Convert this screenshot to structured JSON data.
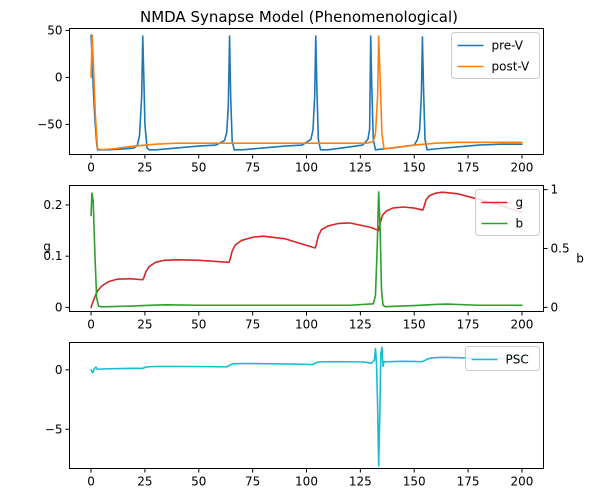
{
  "title": "NMDA Synapse Model (Phenomenological)",
  "chart_data": [
    {
      "type": "line",
      "title": "NMDA Synapse Model (Phenomenological)",
      "xlabel": "",
      "ylabel": "",
      "xlim": [
        -10,
        210
      ],
      "ylim": [
        -82,
        52
      ],
      "xticks": [
        0,
        25,
        50,
        75,
        100,
        125,
        150,
        175,
        200
      ],
      "yticks": [
        50,
        0,
        -50
      ],
      "grid": false,
      "legend_position": "top-right",
      "series": [
        {
          "name": "pre-V",
          "color": "#1f77b4",
          "x": [
            0,
            0.5,
            1,
            1.8,
            2.6,
            3,
            8,
            12,
            16,
            20,
            21.5,
            22.5,
            23.5,
            24,
            24.5,
            25,
            26,
            27,
            30,
            40,
            50,
            58,
            62,
            63,
            63.7,
            64.3,
            64.8,
            65.5,
            66.5,
            70,
            80,
            90,
            98,
            102,
            103,
            103.8,
            104.3,
            104.8,
            105.5,
            106.5,
            110,
            120,
            126,
            128.5,
            129.3,
            129.8,
            130.3,
            131,
            132,
            140,
            150,
            151.5,
            152.5,
            153.3,
            153.8,
            154.3,
            155,
            156,
            160,
            170,
            180,
            190,
            200
          ],
          "y": [
            45,
            20,
            -10,
            -45,
            -70,
            -77,
            -77,
            -76.5,
            -76,
            -75,
            -72,
            -62,
            -20,
            44,
            0,
            -50,
            -75,
            -77,
            -77,
            -75,
            -73,
            -72,
            -67,
            -58,
            -30,
            44,
            -20,
            -68,
            -77,
            -77,
            -75,
            -73,
            -72,
            -66,
            -56,
            -20,
            44,
            -10,
            -66,
            -77,
            -77,
            -74,
            -72,
            -66,
            -55,
            44,
            -10,
            -66,
            -77,
            -75,
            -72,
            -66,
            -56,
            -20,
            43,
            -10,
            -66,
            -77,
            -76,
            -74,
            -72,
            -71,
            -71
          ]
        },
        {
          "name": "post-V",
          "color": "#ff7f0e",
          "x": [
            0,
            0.5,
            1,
            2,
            3,
            5,
            10,
            20,
            30,
            40,
            50,
            60,
            70,
            80,
            90,
            100,
            110,
            120,
            128,
            131,
            132,
            133,
            133.5,
            134,
            135,
            136,
            140,
            150,
            160,
            170,
            180,
            190,
            200
          ],
          "y": [
            0,
            45,
            20,
            -40,
            -76,
            -77,
            -76,
            -73,
            -71,
            -70,
            -70,
            -70,
            -70,
            -70,
            -70,
            -70,
            -70,
            -70,
            -70,
            -68,
            -60,
            -20,
            44,
            10,
            -60,
            -76,
            -75,
            -72,
            -70,
            -69,
            -69,
            -69,
            -69
          ]
        }
      ]
    },
    {
      "type": "line",
      "title": "",
      "xlabel": "",
      "ylabel": "g",
      "y2label": "b",
      "xlim": [
        -10,
        210
      ],
      "ylim": [
        -0.008,
        0.238
      ],
      "y2lim": [
        -0.035,
        1.035
      ],
      "xticks": [
        0,
        25,
        50,
        75,
        100,
        125,
        150,
        175,
        200
      ],
      "yticks": [
        0.0,
        0.1,
        0.2
      ],
      "y2ticks": [
        0.0,
        0.5,
        1.0
      ],
      "grid": false,
      "legend_position": "top-right",
      "series": [
        {
          "name": "g",
          "axis": "left",
          "color": "#d62728",
          "x": [
            0,
            1,
            2,
            3,
            5,
            8,
            12,
            18,
            24,
            24.5,
            25.5,
            27,
            30,
            34,
            40,
            50,
            64,
            64.5,
            65.5,
            67,
            70,
            75,
            80,
            90,
            104,
            104.5,
            105.5,
            107,
            110,
            115,
            120,
            130,
            133.5,
            134.2,
            135.3,
            137,
            140,
            145,
            150,
            154,
            154.5,
            155.5,
            157,
            160,
            163,
            170,
            180,
            190,
            200
          ],
          "y": [
            0,
            0.012,
            0.023,
            0.032,
            0.042,
            0.05,
            0.055,
            0.056,
            0.054,
            0.058,
            0.07,
            0.08,
            0.088,
            0.092,
            0.093,
            0.092,
            0.088,
            0.093,
            0.11,
            0.122,
            0.131,
            0.137,
            0.139,
            0.134,
            0.116,
            0.122,
            0.14,
            0.152,
            0.159,
            0.164,
            0.165,
            0.156,
            0.15,
            0.165,
            0.18,
            0.188,
            0.194,
            0.196,
            0.194,
            0.19,
            0.196,
            0.21,
            0.218,
            0.223,
            0.225,
            0.222,
            0.211,
            0.199,
            0.185
          ]
        },
        {
          "name": "b",
          "axis": "right",
          "color": "#2ca02c",
          "x": [
            0,
            0.4,
            1,
            1.8,
            2.6,
            3.5,
            5,
            10,
            20,
            30,
            35,
            50,
            60,
            70,
            100,
            120,
            131,
            132,
            132.8,
            133.5,
            134.2,
            134.8,
            135.5,
            136.5,
            138,
            150,
            160,
            165,
            180,
            200
          ],
          "y": [
            0.78,
            0.97,
            0.9,
            0.45,
            0.08,
            0.01,
            0.005,
            0.007,
            0.012,
            0.02,
            0.022,
            0.018,
            0.018,
            0.018,
            0.018,
            0.018,
            0.03,
            0.1,
            0.5,
            0.98,
            0.65,
            0.15,
            0.02,
            0.005,
            0.007,
            0.015,
            0.025,
            0.028,
            0.018,
            0.018
          ]
        }
      ]
    },
    {
      "type": "line",
      "title": "",
      "xlabel": "",
      "ylabel": "",
      "xlim": [
        -10,
        210
      ],
      "ylim": [
        -8.3,
        2.3
      ],
      "xticks": [
        0,
        25,
        50,
        75,
        100,
        125,
        150,
        175,
        200
      ],
      "yticks": [
        0,
        -5
      ],
      "grid": false,
      "legend_position": "top-right",
      "series": [
        {
          "name": "PSC",
          "color": "#17becf",
          "x": [
            0,
            0.8,
            1.5,
            2.3,
            3,
            5,
            10,
            20,
            24,
            25,
            26,
            27,
            30,
            35,
            45,
            55,
            63,
            64,
            65,
            66,
            67,
            72,
            80,
            90,
            103,
            104,
            105,
            106,
            107,
            112,
            120,
            127,
            130,
            131.5,
            132,
            132.5,
            133,
            133.5,
            134,
            134.5,
            135,
            135.5,
            136,
            137,
            140,
            145,
            150,
            153.5,
            154.5,
            156,
            158,
            163,
            170,
            180,
            190,
            200
          ],
          "y": [
            0,
            -0.25,
            0.1,
            0.22,
            0.05,
            0.07,
            0.1,
            0.13,
            0.12,
            0.2,
            0.24,
            0.26,
            0.28,
            0.29,
            0.28,
            0.27,
            0.25,
            0.35,
            0.45,
            0.5,
            0.52,
            0.53,
            0.52,
            0.5,
            0.45,
            0.56,
            0.63,
            0.66,
            0.68,
            0.69,
            0.68,
            0.66,
            0.55,
            0.8,
            1.8,
            0.5,
            -3,
            -8.1,
            -4,
            1.4,
            1.9,
            0.3,
            0.7,
            0.68,
            0.7,
            0.72,
            0.71,
            0.68,
            0.75,
            0.9,
            1.0,
            1.05,
            1.02,
            0.98,
            0.96,
            0.92
          ]
        }
      ]
    }
  ]
}
